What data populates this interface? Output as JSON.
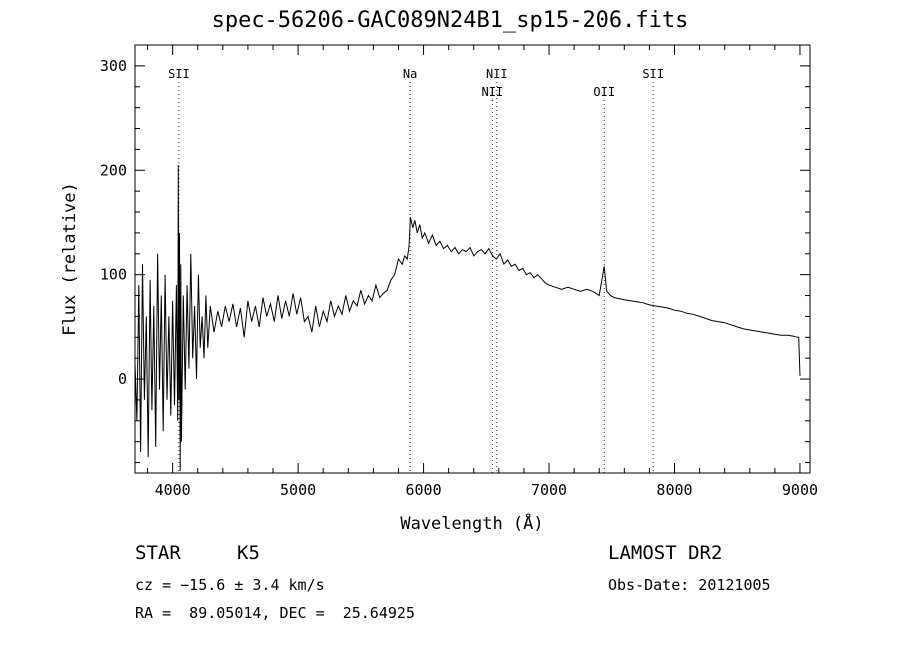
{
  "chart_data": {
    "type": "line",
    "title": "spec-56206-GAC089N24B1_sp15-206.fits",
    "xlabel": "Wavelength (Å)",
    "ylabel": "Flux (relative)",
    "xlim": [
      3700,
      9080
    ],
    "ylim": [
      -90,
      320
    ],
    "xticks": [
      4000,
      5000,
      6000,
      7000,
      8000,
      9000
    ],
    "yticks": [
      0,
      100,
      200,
      300
    ],
    "grid": false,
    "lines": [
      {
        "label": "SII",
        "x": 4050,
        "row": 0
      },
      {
        "label": "Na",
        "x": 5893,
        "row": 0
      },
      {
        "label": "NII",
        "x": 6548,
        "row": 1
      },
      {
        "label": "NII",
        "x": 6584,
        "row": 0
      },
      {
        "label": "OII",
        "x": 7440,
        "row": 1
      },
      {
        "label": "SII",
        "x": 7830,
        "row": 0
      }
    ],
    "series": [
      {
        "x": [
          3700,
          3715,
          3730,
          3745,
          3760,
          3775,
          3790,
          3805,
          3820,
          3835,
          3850,
          3865,
          3880,
          3895,
          3910,
          3925,
          3940,
          3955,
          3970,
          3985,
          4000,
          4015,
          4030,
          4040,
          4045,
          4050,
          4055,
          4060,
          4065,
          4070,
          4085,
          4100,
          4115,
          4130,
          4145,
          4160,
          4175,
          4190,
          4205,
          4220,
          4235,
          4250,
          4265,
          4280,
          4300,
          4330,
          4360,
          4390,
          4420,
          4450,
          4480,
          4510,
          4540,
          4570,
          4600,
          4630,
          4660,
          4690,
          4720,
          4750,
          4780,
          4810,
          4840,
          4870,
          4900,
          4930,
          4960,
          4990,
          5020,
          5050,
          5080,
          5110,
          5140,
          5170,
          5200,
          5230,
          5260,
          5290,
          5320,
          5350,
          5380,
          5410,
          5440,
          5470,
          5500,
          5530,
          5560,
          5590,
          5620,
          5650,
          5680,
          5710,
          5740,
          5770,
          5800,
          5830,
          5850,
          5870,
          5885,
          5895,
          5905,
          5915,
          5930,
          5950,
          5970,
          5990,
          6010,
          6040,
          6070,
          6100,
          6130,
          6160,
          6190,
          6220,
          6250,
          6280,
          6310,
          6340,
          6370,
          6400,
          6430,
          6460,
          6490,
          6520,
          6550,
          6580,
          6610,
          6640,
          6670,
          6700,
          6730,
          6760,
          6790,
          6820,
          6850,
          6880,
          6910,
          6940,
          6970,
          7000,
          7050,
          7100,
          7150,
          7200,
          7250,
          7300,
          7350,
          7400,
          7440,
          7460,
          7475,
          7490,
          7520,
          7560,
          7600,
          7650,
          7700,
          7750,
          7800,
          7850,
          7900,
          7950,
          8000,
          8050,
          8100,
          8150,
          8200,
          8250,
          8300,
          8350,
          8400,
          8450,
          8500,
          8550,
          8600,
          8650,
          8700,
          8750,
          8800,
          8850,
          8900,
          8950,
          8980,
          8990,
          9000
        ],
        "y": [
          15,
          -40,
          90,
          -70,
          110,
          -20,
          60,
          -75,
          95,
          -30,
          70,
          -65,
          120,
          -10,
          80,
          -50,
          100,
          -20,
          60,
          -35,
          75,
          -25,
          90,
          -40,
          205,
          -20,
          140,
          -88,
          110,
          -60,
          80,
          -10,
          90,
          10,
          120,
          20,
          70,
          0,
          100,
          30,
          60,
          20,
          80,
          30,
          70,
          45,
          65,
          50,
          70,
          55,
          72,
          50,
          68,
          40,
          75,
          55,
          70,
          50,
          78,
          60,
          72,
          55,
          80,
          58,
          75,
          60,
          82,
          62,
          78,
          55,
          60,
          45,
          70,
          50,
          65,
          55,
          75,
          60,
          70,
          62,
          80,
          65,
          75,
          70,
          85,
          72,
          80,
          75,
          90,
          78,
          82,
          85,
          95,
          100,
          115,
          110,
          118,
          115,
          128,
          155,
          150,
          145,
          152,
          140,
          148,
          135,
          140,
          130,
          138,
          128,
          132,
          125,
          128,
          122,
          126,
          120,
          124,
          122,
          126,
          118,
          122,
          124,
          120,
          125,
          118,
          115,
          120,
          110,
          114,
          108,
          110,
          104,
          106,
          100,
          102,
          97,
          100,
          96,
          92,
          90,
          88,
          86,
          88,
          86,
          84,
          86,
          84,
          80,
          108,
          84,
          82,
          80,
          78,
          77,
          76,
          75,
          74,
          73,
          71,
          70,
          69,
          68,
          66,
          65,
          63,
          62,
          60,
          58,
          56,
          55,
          54,
          52,
          50,
          48,
          47,
          46,
          45,
          44,
          43,
          42,
          42,
          41,
          40,
          40,
          3
        ]
      }
    ]
  },
  "info": {
    "object_class": "STAR",
    "subclass": "K5",
    "survey": "LAMOST DR2",
    "cz": "cz = −15.6 ± 3.4 km/s",
    "obs_date": "Obs-Date: 20121005",
    "coords": "RA =  89.05014, DEC =  25.64925"
  }
}
